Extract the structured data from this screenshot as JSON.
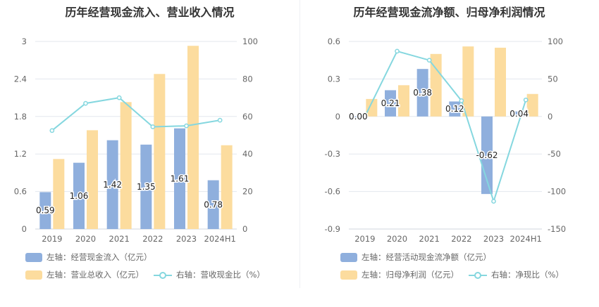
{
  "colors": {
    "bar_primary": "#8fafdd",
    "bar_secondary": "#fcdc9e",
    "line": "#85d7df",
    "axis_text": "#666666",
    "grid": "#e3e7ee"
  },
  "charts": {
    "left": {
      "title": "历年经营现金流入、营业收入情况",
      "legend": {
        "bar1": "左轴：经营现金流入（亿元）",
        "bar2": "左轴：营业总收入（亿元）",
        "line": "右轴：营收现金比（%）"
      }
    },
    "right": {
      "title": "历年经营现金流净额、归母净利润情况",
      "legend": {
        "bar1": "左轴：经营活动现金流净额（亿元）",
        "bar2": "左轴：归母净利润（亿元）",
        "line": "右轴：净现比（%）"
      }
    }
  },
  "chart_data": [
    {
      "type": "bar",
      "title": "历年经营现金流入、营业收入情况",
      "categories": [
        "2019",
        "2020",
        "2021",
        "2022",
        "2023",
        "2024H1"
      ],
      "y_left": {
        "min": 0,
        "max": 3,
        "ticks": [
          "0",
          "0.6",
          "1.2",
          "1.8",
          "2.4",
          "3"
        ]
      },
      "y_right": {
        "min": 0,
        "max": 100,
        "ticks": [
          "0",
          "20",
          "40",
          "60",
          "80",
          "100"
        ]
      },
      "series": [
        {
          "name": "左轴：经营现金流入（亿元）",
          "axis": "left",
          "kind": "bar",
          "values": [
            0.59,
            1.06,
            1.42,
            1.35,
            1.61,
            0.78
          ],
          "labels": [
            "0.59",
            "1.06",
            "1.42",
            "1.35",
            "1.61",
            "0.78"
          ]
        },
        {
          "name": "左轴：营业总收入（亿元）",
          "axis": "left",
          "kind": "bar",
          "values": [
            1.12,
            1.58,
            2.03,
            2.48,
            2.93,
            1.34
          ]
        },
        {
          "name": "右轴：营收现金比（%）",
          "axis": "right",
          "kind": "line",
          "values": [
            52.5,
            67,
            70,
            54.5,
            55,
            58
          ]
        }
      ]
    },
    {
      "type": "bar",
      "title": "历年经营现金流净额、归母净利润情况",
      "categories": [
        "2019",
        "2020",
        "2021",
        "2022",
        "2023",
        "2024H1"
      ],
      "y_left": {
        "min": -0.9,
        "max": 0.6,
        "ticks": [
          "-0.9",
          "-0.6",
          "-0.3",
          "0",
          "0.3",
          "0.6"
        ]
      },
      "y_right": {
        "min": -150,
        "max": 100,
        "ticks": [
          "-150",
          "-100",
          "-50",
          "0",
          "50",
          "100"
        ]
      },
      "series": [
        {
          "name": "左轴：经营活动现金流净额（亿元）",
          "axis": "left",
          "kind": "bar",
          "values": [
            0.0,
            0.21,
            0.38,
            0.12,
            -0.62,
            0.04
          ],
          "labels": [
            "0.00",
            "0.21",
            "0.38",
            "0.12",
            "-0.62",
            "0.04"
          ]
        },
        {
          "name": "左轴：归母净利润（亿元）",
          "axis": "left",
          "kind": "bar",
          "values": [
            0.14,
            0.25,
            0.5,
            0.56,
            0.55,
            0.18
          ]
        },
        {
          "name": "右轴：净现比（%）",
          "axis": "right",
          "kind": "line",
          "values": [
            0,
            87,
            75,
            21,
            -113,
            22
          ]
        }
      ]
    }
  ]
}
